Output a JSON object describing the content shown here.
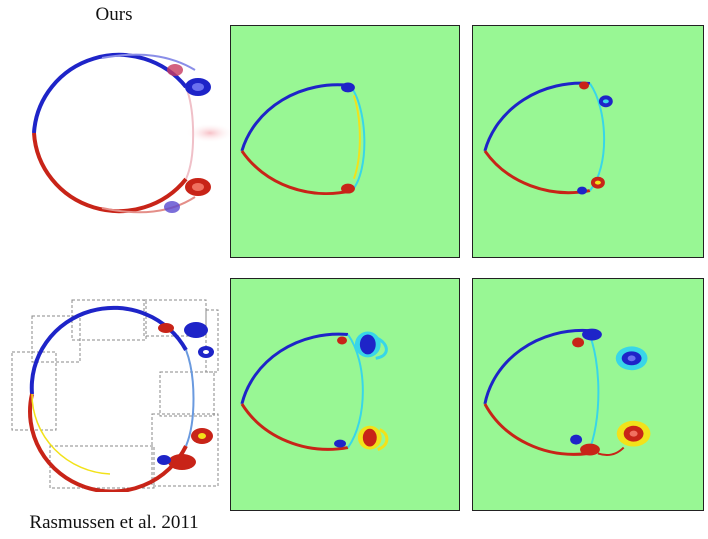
{
  "figure": {
    "top_row_label": "Ours",
    "bottom_row_label": "Rasmussen et al. 2011",
    "colors": {
      "background_field": "#98f794",
      "negative_vorticity": "#1e24c8",
      "positive_vorticity": "#c82418",
      "cyan_layer": "#38d6e8",
      "yellow_layer": "#f2e21a",
      "frame": "#222222",
      "grid_dashes": "#888888"
    }
  }
}
